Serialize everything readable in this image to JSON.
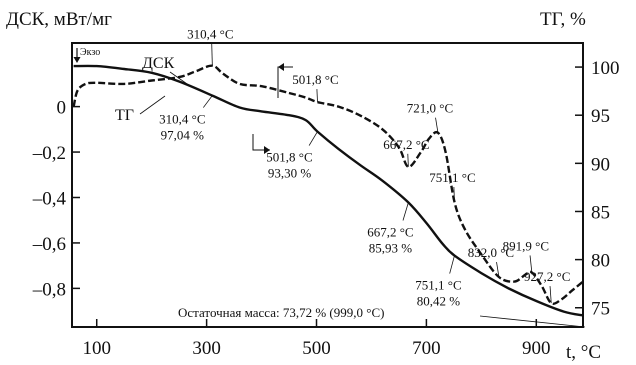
{
  "chart_data": {
    "type": "line",
    "title_left": "ДСК, мВт/мг",
    "title_right": "ТГ, %",
    "xlabel": "t, °C",
    "exo_label": "Экзо",
    "x_range": [
      55,
      985
    ],
    "x_ticks": [
      "100",
      "300",
      "500",
      "700",
      "900"
    ],
    "y_left_range": [
      -0.97,
      0.28
    ],
    "y_left_ticks": [
      "0",
      "–0,2",
      "–0,4",
      "–0,6",
      "–0,8"
    ],
    "y_right_range": [
      73,
      102.5
    ],
    "y_right_ticks": [
      "100",
      "95",
      "90",
      "85",
      "80",
      "75"
    ],
    "series": [
      {
        "name": "ДСК",
        "axis": "left",
        "style": "dashed",
        "points": [
          [
            58,
            0.0
          ],
          [
            65,
            0.07
          ],
          [
            80,
            0.1
          ],
          [
            100,
            0.105
          ],
          [
            150,
            0.1
          ],
          [
            200,
            0.115
          ],
          [
            250,
            0.13
          ],
          [
            280,
            0.155
          ],
          [
            310,
            0.18
          ],
          [
            330,
            0.145
          ],
          [
            360,
            0.1
          ],
          [
            400,
            0.09
          ],
          [
            450,
            0.06
          ],
          [
            480,
            0.04
          ],
          [
            501.8,
            0.02
          ],
          [
            540,
            0.0
          ],
          [
            580,
            -0.04
          ],
          [
            620,
            -0.1
          ],
          [
            650,
            -0.18
          ],
          [
            667.2,
            -0.265
          ],
          [
            690,
            -0.2
          ],
          [
            705,
            -0.14
          ],
          [
            721,
            -0.115
          ],
          [
            735,
            -0.2
          ],
          [
            751.1,
            -0.42
          ],
          [
            770,
            -0.54
          ],
          [
            800,
            -0.65
          ],
          [
            832,
            -0.75
          ],
          [
            860,
            -0.77
          ],
          [
            880,
            -0.74
          ],
          [
            891.9,
            -0.73
          ],
          [
            910,
            -0.79
          ],
          [
            927.2,
            -0.865
          ],
          [
            945,
            -0.85
          ],
          [
            965,
            -0.81
          ],
          [
            985,
            -0.77
          ]
        ]
      },
      {
        "name": "ТГ",
        "axis": "right",
        "style": "solid",
        "points": [
          [
            58,
            100.1
          ],
          [
            100,
            100.1
          ],
          [
            150,
            99.8
          ],
          [
            200,
            99.4
          ],
          [
            250,
            98.5
          ],
          [
            310.4,
            97.04
          ],
          [
            360,
            95.8
          ],
          [
            400,
            95.4
          ],
          [
            450,
            95.0
          ],
          [
            480,
            94.5
          ],
          [
            501.8,
            93.3
          ],
          [
            540,
            91.5
          ],
          [
            580,
            89.8
          ],
          [
            620,
            88.2
          ],
          [
            667.2,
            85.93
          ],
          [
            700,
            83.8
          ],
          [
            730,
            81.6
          ],
          [
            751.1,
            80.42
          ],
          [
            800,
            78.6
          ],
          [
            850,
            77.0
          ],
          [
            900,
            75.7
          ],
          [
            950,
            74.6
          ],
          [
            985,
            74.2
          ]
        ]
      }
    ],
    "annotations": [
      {
        "text": "310,4 °C",
        "series": "ДСК",
        "x": 310.4,
        "y": 0.18
      },
      {
        "text": "501,8 °C",
        "series": "ДСК",
        "x": 501.8,
        "y": 0.02
      },
      {
        "text": "667,2 °C",
        "series": "ДСК",
        "x": 667.2,
        "y": -0.265
      },
      {
        "text": "721,0 °C",
        "series": "ДСК",
        "x": 721.0,
        "y": -0.115
      },
      {
        "text": "751,1 °C",
        "series": "ДСК",
        "x": 751.1,
        "y": -0.42
      },
      {
        "text": "832,0 °C",
        "series": "ДСК",
        "x": 832.0,
        "y": -0.75
      },
      {
        "text": "891,9 °C",
        "series": "ДСК",
        "x": 891.9,
        "y": -0.73
      },
      {
        "text": "927,2 °C",
        "series": "ДСК",
        "x": 927.2,
        "y": -0.865
      },
      {
        "text": "310,4 °C",
        "text2": "97,04 %",
        "series": "ТГ",
        "x": 310.4,
        "y": 97.04
      },
      {
        "text": "501,8 °C",
        "text2": "93,30 %",
        "series": "ТГ",
        "x": 501.8,
        "y": 93.3
      },
      {
        "text": "667,2 °C",
        "text2": "85,93 %",
        "series": "ТГ",
        "x": 667.2,
        "y": 85.93
      },
      {
        "text": "751,1 °C",
        "text2": "80,42 %",
        "series": "ТГ",
        "x": 751.1,
        "y": 80.42
      }
    ],
    "residual_mass_label": "Остаточная масса: 73,72 % (999,0 °C)",
    "curve_labels": [
      "ДСК",
      "ТГ"
    ]
  }
}
